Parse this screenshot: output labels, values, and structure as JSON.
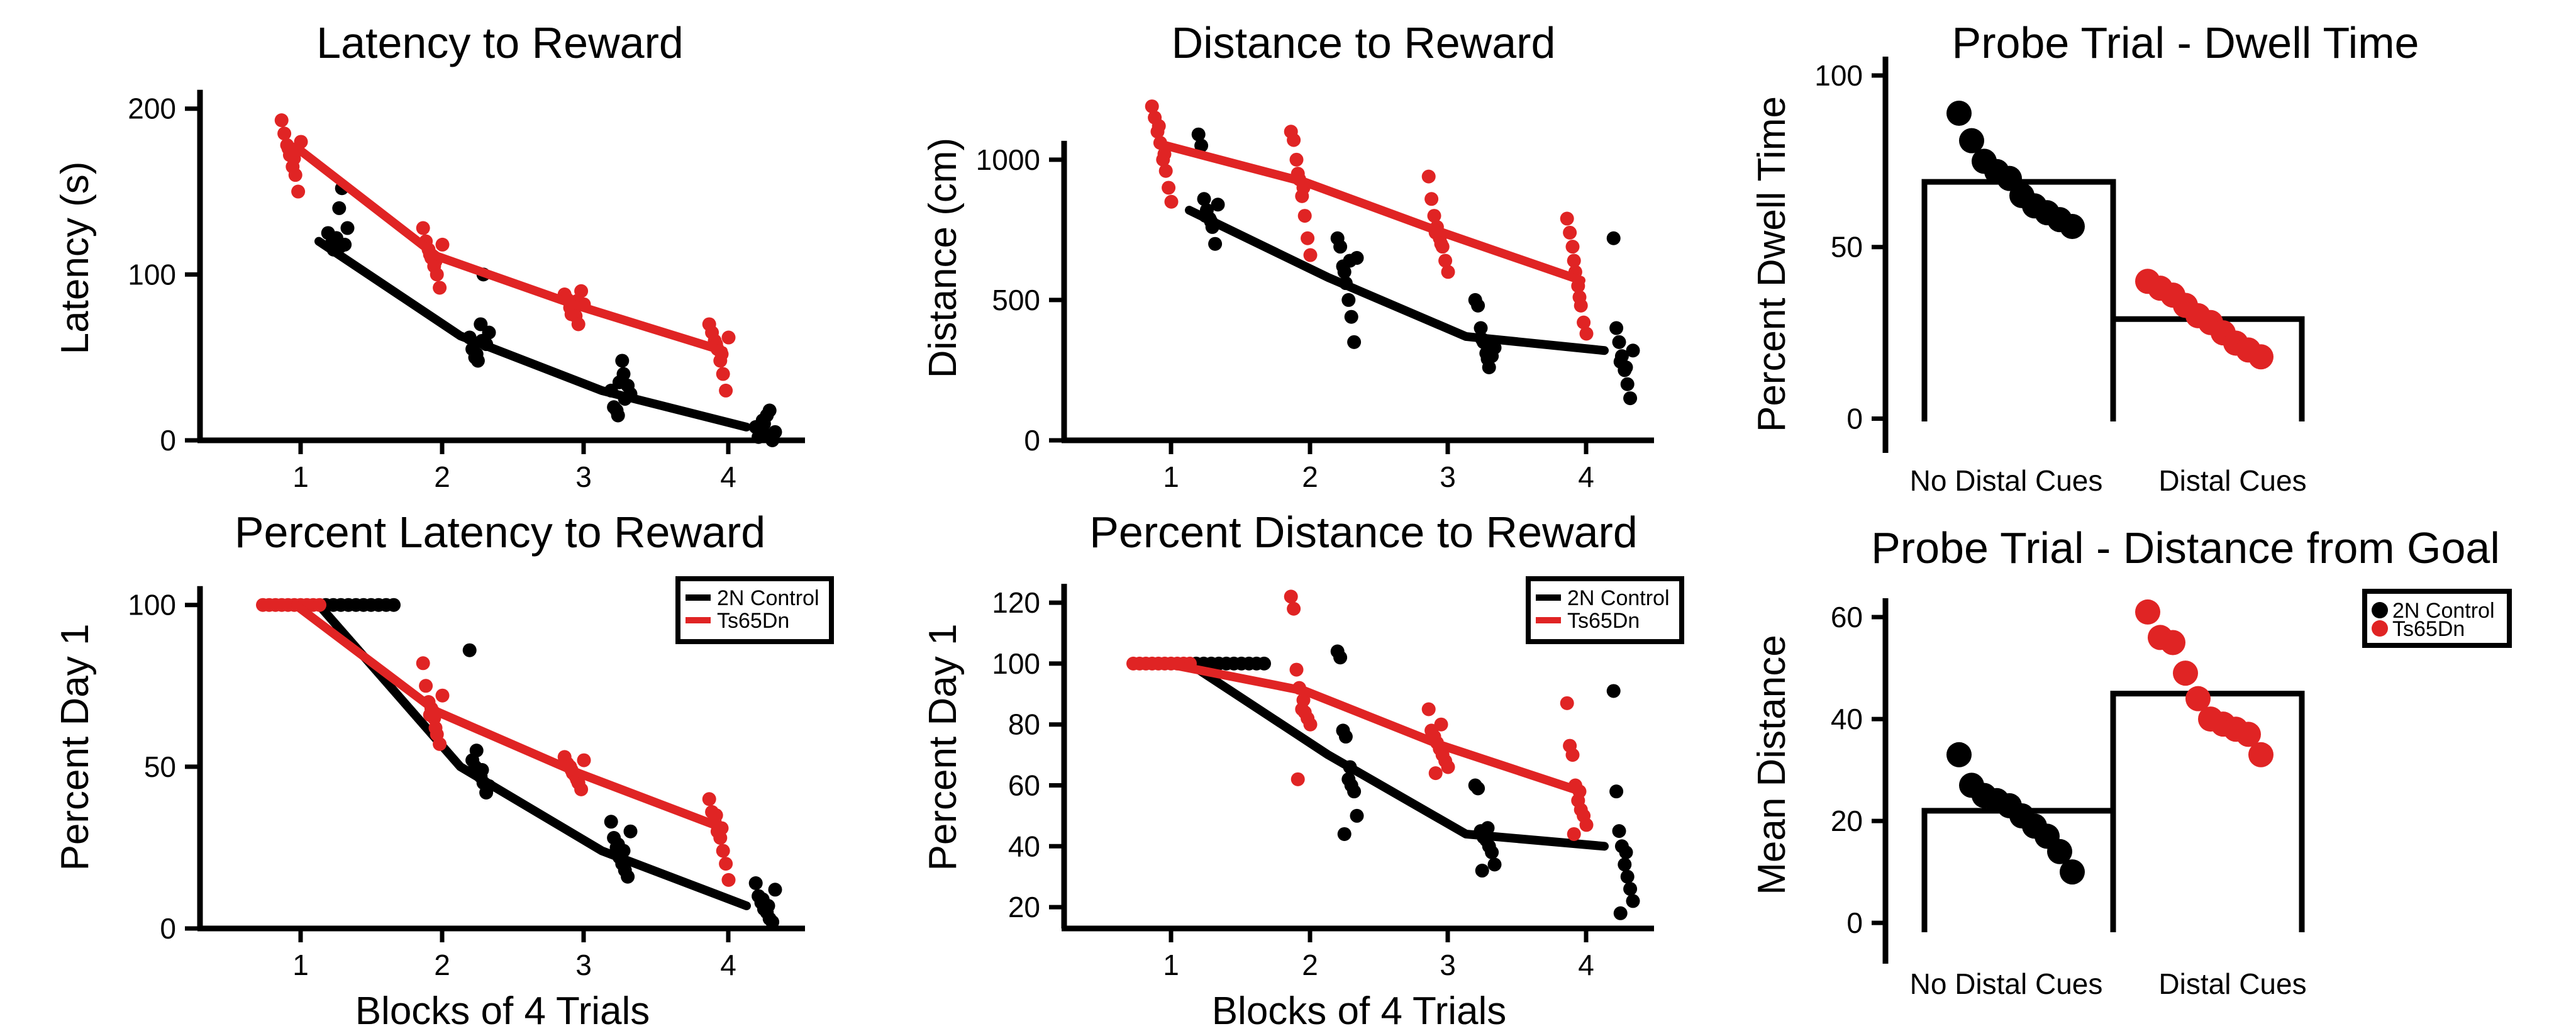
{
  "colors": {
    "control": "#000000",
    "ts": "#e02424"
  },
  "chart_data": [
    {
      "id": "latency",
      "type": "scatter",
      "title": "Latency to Reward",
      "xlabel": "",
      "ylabel": "Latency (s)",
      "x_ticks": [
        "1",
        "2",
        "3",
        "4"
      ],
      "y_ticks": [
        0,
        100,
        200
      ],
      "ylim": [
        0,
        220
      ],
      "legend": null,
      "series": [
        {
          "name": "2N Control",
          "color": "#000000",
          "line": [
            120,
            63,
            30,
            8
          ],
          "points": [
            [
              125,
              118,
              115,
              122,
              140,
              152,
              118,
              128,
              121,
              117
            ],
            [
              62,
              55,
              50,
              48,
              70,
              100,
              58,
              65,
              52,
              60
            ],
            [
              30,
              20,
              18,
              35,
              48,
              25,
              33,
              28,
              15,
              40
            ],
            [
              8,
              2,
              5,
              10,
              15,
              18,
              0,
              5,
              12,
              3
            ]
          ]
        },
        {
          "name": "Ts65Dn",
          "color": "#e02424",
          "line": [
            177,
            111,
            81,
            54
          ],
          "points": [
            [
              193,
              185,
              178,
              172,
              165,
              160,
              150,
              180,
              176,
              170
            ],
            [
              128,
              120,
              115,
              110,
              105,
              100,
              92,
              118,
              112,
              108
            ],
            [
              88,
              85,
              80,
              78,
              75,
              70,
              90,
              82,
              76,
              84
            ],
            [
              70,
              65,
              60,
              55,
              48,
              40,
              30,
              62,
              58,
              52
            ]
          ]
        }
      ]
    },
    {
      "id": "distance",
      "type": "scatter",
      "title": "Distance to Reward",
      "xlabel": "",
      "ylabel": "Distance (cm)",
      "x_ticks": [
        "1",
        "2",
        "3",
        "4"
      ],
      "y_ticks": [
        0,
        500,
        1000
      ],
      "ylim": [
        0,
        1300
      ],
      "legend": null,
      "series": [
        {
          "name": "2N Control",
          "color": "#000000",
          "line": [
            820,
            580,
            370,
            320
          ],
          "points": [
            [
              1090,
              1050,
              860,
              820,
              790,
              760,
              700,
              840,
              800,
              780
            ],
            [
              720,
              690,
              620,
              560,
              500,
              440,
              350,
              650,
              600,
              640
            ],
            [
              500,
              480,
              400,
              350,
              310,
              260,
              300,
              330,
              360,
              290
            ],
            [
              720,
              400,
              350,
              300,
              250,
              200,
              150,
              320,
              280,
              260
            ]
          ]
        },
        {
          "name": "Ts65Dn",
          "color": "#e02424",
          "line": [
            1050,
            920,
            740,
            570
          ],
          "points": [
            [
              1190,
              1150,
              1100,
              1060,
              1000,
              960,
              900,
              850,
              1120,
              1020
            ],
            [
              1100,
              1070,
              1000,
              930,
              870,
              800,
              720,
              660,
              950,
              900
            ],
            [
              940,
              860,
              800,
              760,
              720,
              690,
              640,
              600,
              740,
              700
            ],
            [
              790,
              740,
              690,
              600,
              550,
              480,
              420,
              380,
              640,
              510
            ]
          ]
        }
      ]
    },
    {
      "id": "pct_latency",
      "type": "scatter",
      "title": "Percent Latency to Reward",
      "xlabel": "Blocks of 4 Trials",
      "ylabel": "Percent Day 1",
      "x_ticks": [
        "1",
        "2",
        "3",
        "4"
      ],
      "y_ticks": [
        0,
        50,
        100
      ],
      "ylim": [
        0,
        112
      ],
      "legend": {
        "entries": [
          "2N Control",
          "Ts65Dn"
        ],
        "position": "top-right"
      },
      "series": [
        {
          "name": "2N Control",
          "color": "#000000",
          "line": [
            100,
            50,
            24,
            7
          ],
          "points": [
            [
              100,
              100,
              100,
              100,
              100,
              100,
              100,
              100,
              100,
              100
            ],
            [
              86,
              52,
              50,
              48,
              47,
              45,
              42,
              44,
              55,
              49
            ],
            [
              33,
              28,
              25,
              22,
              20,
              18,
              16,
              30,
              26,
              24
            ],
            [
              14,
              10,
              8,
              6,
              5,
              3,
              2,
              12,
              9,
              7
            ]
          ]
        },
        {
          "name": "Ts65Dn",
          "color": "#e02424",
          "line": [
            100,
            67,
            48,
            31
          ],
          "points": [
            [
              100,
              100,
              100,
              100,
              100,
              100,
              100,
              100,
              100,
              100
            ],
            [
              82,
              75,
              70,
              68,
              65,
              60,
              57,
              72,
              66,
              62
            ],
            [
              53,
              51,
              50,
              48,
              47,
              45,
              43,
              52,
              49,
              46
            ],
            [
              40,
              36,
              33,
              30,
              28,
              24,
              20,
              15,
              35,
              31
            ]
          ]
        }
      ]
    },
    {
      "id": "pct_distance",
      "type": "scatter",
      "title": "Percent Distance to Reward",
      "xlabel": "Blocks of 4 Trials",
      "ylabel": "Percent Day 1",
      "x_ticks": [
        "1",
        "2",
        "3",
        "4"
      ],
      "y_ticks": [
        20,
        40,
        60,
        80,
        100,
        120
      ],
      "ylim": [
        13,
        132
      ],
      "legend": {
        "entries": [
          "2N Control",
          "Ts65Dn"
        ],
        "position": "top-right"
      },
      "series": [
        {
          "name": "2N Control",
          "color": "#000000",
          "line": [
            100,
            70,
            44,
            40
          ],
          "points": [
            [
              100,
              100,
              100,
              100,
              100,
              100,
              100,
              100,
              100,
              100
            ],
            [
              104,
              102,
              78,
              76,
              62,
              60,
              58,
              50,
              44,
              66
            ],
            [
              60,
              59,
              45,
              43,
              42,
              40,
              38,
              34,
              32,
              46
            ],
            [
              91,
              58,
              45,
              40,
              34,
              30,
              26,
              22,
              18,
              38
            ]
          ]
        },
        {
          "name": "Ts65Dn",
          "color": "#e02424",
          "line": [
            100,
            91,
            73,
            58
          ],
          "points": [
            [
              100,
              100,
              100,
              100,
              100,
              100,
              100,
              100,
              100,
              100
            ],
            [
              122,
              118,
              98,
              92,
              85,
              84,
              82,
              80,
              62,
              88
            ],
            [
              85,
              78,
              76,
              74,
              72,
              70,
              68,
              66,
              64,
              80
            ],
            [
              87,
              73,
              70,
              60,
              55,
              52,
              50,
              47,
              44,
              58
            ]
          ]
        }
      ]
    },
    {
      "id": "dwell",
      "type": "bar",
      "title": "Probe Trial - Dwell Time",
      "xlabel": "",
      "ylabel": "Percent Dwell Time",
      "categories": [
        "No Distal Cues",
        "Distal Cues"
      ],
      "values": [
        69,
        29
      ],
      "y_ticks": [
        0,
        50,
        100
      ],
      "ylim": [
        -10,
        100
      ],
      "legend": null,
      "points": [
        {
          "name": "2N Control",
          "color": "#000000",
          "values": [
            89,
            81,
            75,
            72,
            70,
            65,
            62,
            60,
            58,
            56
          ]
        },
        {
          "name": "Ts65Dn",
          "color": "#e02424",
          "values": [
            40,
            38,
            36,
            33,
            30,
            28,
            25,
            22,
            20,
            18
          ]
        }
      ]
    },
    {
      "id": "distance_goal",
      "type": "bar",
      "title": "Probe Trial - Distance from Goal",
      "xlabel": "",
      "ylabel": "Mean Distance",
      "categories": [
        "No Distal Cues",
        "Distal Cues"
      ],
      "values": [
        22,
        45
      ],
      "y_ticks": [
        0,
        20,
        40,
        60
      ],
      "ylim": [
        -8,
        70
      ],
      "legend": {
        "entries": [
          "2N Control",
          "Ts65Dn"
        ],
        "position": "top-right"
      },
      "points": [
        {
          "name": "2N Control",
          "color": "#000000",
          "values": [
            33,
            27,
            25,
            24,
            23,
            21,
            19,
            17,
            14,
            10
          ]
        },
        {
          "name": "Ts65Dn",
          "color": "#e02424",
          "values": [
            61,
            56,
            55,
            49,
            44,
            40,
            39,
            38,
            37,
            33
          ]
        }
      ]
    }
  ]
}
